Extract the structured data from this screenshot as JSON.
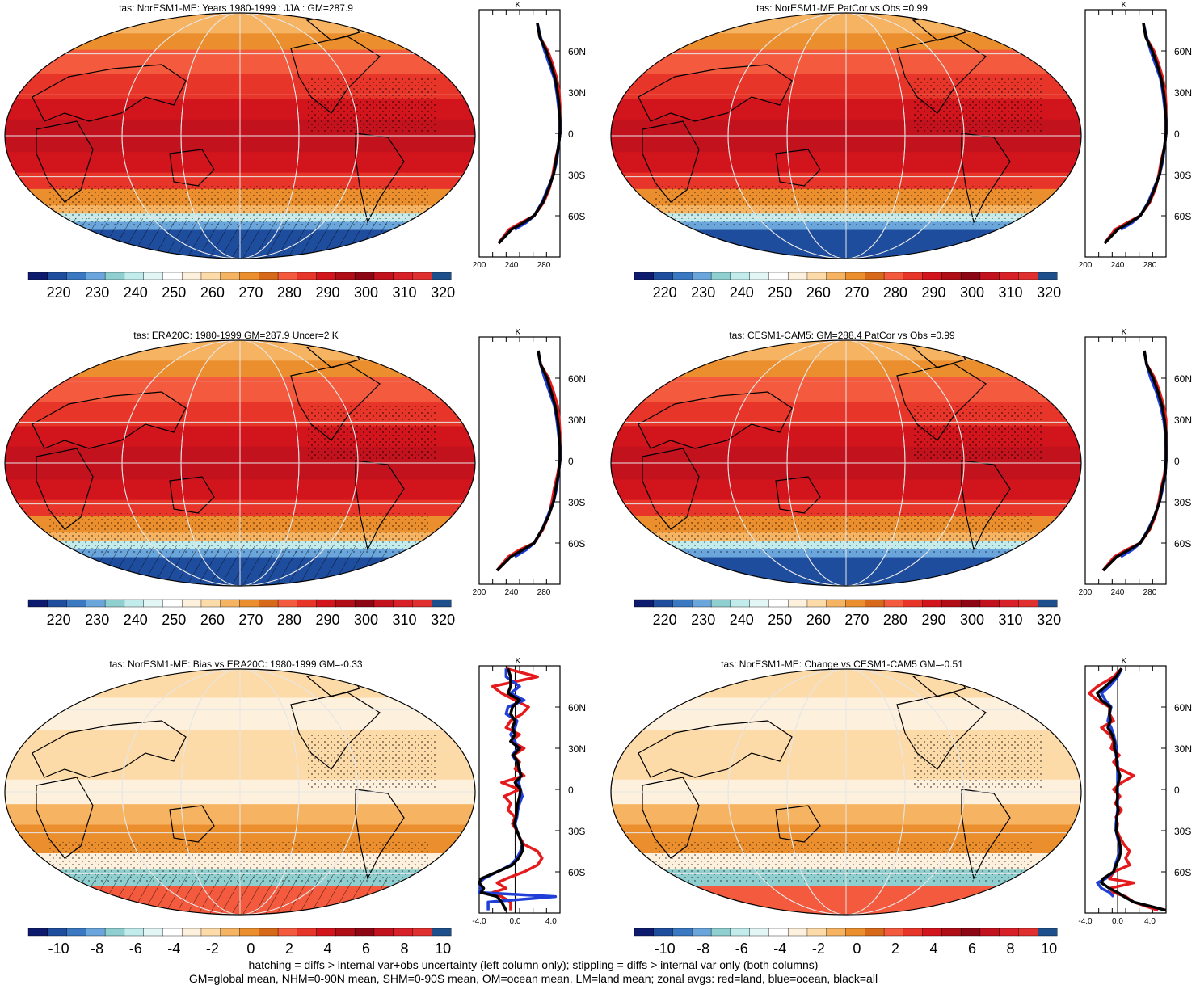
{
  "footer": {
    "line1": "hatching = diffs > internal var+obs uncertainty (left column only); stippling = diffs > internal var only (both columns)",
    "line2": "GM=global mean, NHM=0-90N mean, SHM=0-90S mean, OM=ocean mean, LM=land mean; zonal avgs: red=land, blue=ocean, black=all"
  },
  "series_colors": {
    "land": "#e41a1c",
    "ocean": "#1f3fd8",
    "all": "#000000"
  },
  "colorbars": {
    "absolute": {
      "labels": [
        "220",
        "230",
        "240",
        "250",
        "260",
        "270",
        "280",
        "290",
        "300",
        "310",
        "320"
      ],
      "colors": [
        "#0d1b6e",
        "#1f4d9e",
        "#3a78c2",
        "#6aa6dc",
        "#8fcfcf",
        "#c2ecec",
        "#e3f6f6",
        "#ffffff",
        "#fdf0dc",
        "#fddba9",
        "#f6b463",
        "#eb8e2d",
        "#d66a1a",
        "#f35a3e",
        "#e8352a",
        "#d2141c",
        "#b00d17",
        "#8c0613",
        "#c2121d",
        "#d72028",
        "#e02f2f",
        "#1d4f8c"
      ]
    },
    "difference": {
      "labels": [
        "-10",
        "-8",
        "-6",
        "-4",
        "-2",
        "0",
        "2",
        "4",
        "6",
        "8",
        "10"
      ],
      "colors": [
        "#0d1b6e",
        "#1f4d9e",
        "#3a78c2",
        "#6aa6dc",
        "#8fcfcf",
        "#c2ecec",
        "#e3f6f6",
        "#ffffff",
        "#fdf0dc",
        "#fddba9",
        "#f6b463",
        "#eb8e2d",
        "#d66a1a",
        "#f35a3e",
        "#e8352a",
        "#d2141c",
        "#b00d17",
        "#8c0613",
        "#c2121d",
        "#d72028",
        "#e02f2f",
        "#1d4f8c"
      ]
    }
  },
  "lat_labels": [
    "60N",
    "30N",
    "0",
    "30S",
    "60S"
  ],
  "panels": [
    {
      "id": "model-jja",
      "title": "tas: NorESM1-ME: Years 1980-1999 : JJA : GM=287.9",
      "kind": "absolute",
      "top_label": "K",
      "x_ticks": [
        "200",
        "240",
        "280"
      ]
    },
    {
      "id": "model-patcor",
      "title": "tas: NorESM1-ME PatCor vs Obs =0.99",
      "kind": "absolute",
      "top_label": "K",
      "x_ticks": [
        "200",
        "240",
        "280"
      ]
    },
    {
      "id": "era20c",
      "title": "tas: ERA20C: 1980-1999 GM=287.9 Uncer=2 K",
      "kind": "absolute",
      "top_label": "K",
      "x_ticks": [
        "200",
        "240",
        "280"
      ]
    },
    {
      "id": "cesm1",
      "title": "tas: CESM1-CAM5: GM=288.4 PatCor vs Obs =0.99",
      "kind": "absolute",
      "top_label": "K",
      "x_ticks": [
        "200",
        "240",
        "280"
      ]
    },
    {
      "id": "bias-era20c",
      "title": "tas: NorESM1-ME: Bias vs ERA20C: 1980-1999 GM=-0.33",
      "kind": "difference",
      "top_label": "K",
      "x_ticks": [
        "-4.0",
        "0.0",
        "4.0"
      ]
    },
    {
      "id": "change-cesm1",
      "title": "tas: NorESM1-ME: Change vs CESM1-CAM5 GM=-0.51",
      "kind": "difference",
      "top_label": "K",
      "x_ticks": [
        "-4.0",
        "0.0",
        "4.0"
      ]
    }
  ],
  "chart_data": [
    {
      "type": "line",
      "title": "tas: NorESM1-ME: Years 1980-1999 : JJA : GM=287.9",
      "xlabel": "K",
      "xlim": [
        200,
        300
      ],
      "ylim": [
        -90,
        90
      ],
      "x_ticks": [
        200,
        240,
        280
      ],
      "y_ticks": [
        "60N",
        "30N",
        "0",
        "30S",
        "60S"
      ],
      "lat": [
        80,
        70,
        60,
        50,
        40,
        30,
        20,
        10,
        0,
        -10,
        -20,
        -30,
        -40,
        -50,
        -60,
        -65,
        -70,
        -80
      ],
      "series": [
        {
          "name": "land",
          "values": [
            272,
            275,
            285,
            291,
            296,
            299,
            301,
            302,
            301,
            298,
            294,
            291,
            287,
            280,
            268,
            252,
            237,
            224
          ]
        },
        {
          "name": "ocean",
          "values": [
            272,
            276,
            281,
            287,
            293,
            296,
            298,
            300,
            300,
            298,
            296,
            292,
            285,
            278,
            268,
            258,
            244,
            null
          ]
        },
        {
          "name": "all",
          "values": [
            272,
            275,
            283,
            289,
            294,
            297,
            299,
            300,
            300,
            298,
            295,
            292,
            286,
            279,
            268,
            255,
            240,
            224
          ]
        }
      ]
    },
    {
      "type": "line",
      "title": "tas: NorESM1-ME PatCor vs Obs =0.99",
      "xlabel": "K",
      "xlim": [
        200,
        300
      ],
      "ylim": [
        -90,
        90
      ],
      "x_ticks": [
        200,
        240,
        280
      ],
      "y_ticks": [
        "60N",
        "30N",
        "0",
        "30S",
        "60S"
      ],
      "lat": [
        80,
        70,
        60,
        50,
        40,
        30,
        20,
        10,
        0,
        -10,
        -20,
        -30,
        -40,
        -50,
        -60,
        -65,
        -70,
        -80
      ],
      "series": [
        {
          "name": "land",
          "values": [
            272,
            275,
            285,
            291,
            296,
            299,
            301,
            302,
            301,
            298,
            294,
            291,
            287,
            280,
            268,
            252,
            237,
            224
          ]
        },
        {
          "name": "ocean",
          "values": [
            272,
            276,
            281,
            287,
            293,
            296,
            298,
            300,
            300,
            298,
            296,
            292,
            285,
            278,
            268,
            258,
            244,
            null
          ]
        },
        {
          "name": "all",
          "values": [
            272,
            275,
            283,
            289,
            294,
            297,
            299,
            300,
            300,
            298,
            295,
            292,
            286,
            279,
            268,
            255,
            240,
            224
          ]
        }
      ]
    },
    {
      "type": "line",
      "title": "tas: ERA20C: 1980-1999 GM=287.9 Uncer=2 K",
      "xlabel": "K",
      "xlim": [
        200,
        300
      ],
      "ylim": [
        -90,
        90
      ],
      "x_ticks": [
        200,
        240,
        280
      ],
      "y_ticks": [
        "60N",
        "30N",
        "0",
        "30S",
        "60S"
      ],
      "lat": [
        80,
        70,
        60,
        50,
        40,
        30,
        20,
        10,
        0,
        -10,
        -20,
        -30,
        -40,
        -50,
        -60,
        -65,
        -70,
        -80
      ],
      "series": [
        {
          "name": "land",
          "values": [
            273,
            276,
            286,
            292,
            297,
            299,
            301,
            301,
            300,
            297,
            293,
            290,
            286,
            279,
            268,
            250,
            236,
            222
          ]
        },
        {
          "name": "ocean",
          "values": [
            273,
            276,
            281,
            287,
            293,
            296,
            298,
            300,
            300,
            298,
            296,
            292,
            285,
            278,
            268,
            258,
            244,
            null
          ]
        },
        {
          "name": "all",
          "values": [
            273,
            276,
            284,
            289,
            294,
            297,
            299,
            300,
            300,
            298,
            295,
            292,
            286,
            278,
            268,
            254,
            239,
            222
          ]
        }
      ]
    },
    {
      "type": "line",
      "title": "tas: CESM1-CAM5: GM=288.4 PatCor vs Obs =0.99",
      "xlabel": "K",
      "xlim": [
        200,
        300
      ],
      "ylim": [
        -90,
        90
      ],
      "x_ticks": [
        200,
        240,
        280
      ],
      "y_ticks": [
        "60N",
        "30N",
        "0",
        "30S",
        "60S"
      ],
      "lat": [
        80,
        70,
        60,
        50,
        40,
        30,
        20,
        10,
        0,
        -10,
        -20,
        -30,
        -40,
        -50,
        -60,
        -65,
        -70,
        -80
      ],
      "series": [
        {
          "name": "land",
          "values": [
            273,
            276,
            286,
            292,
            297,
            300,
            301,
            302,
            301,
            298,
            294,
            291,
            287,
            280,
            268,
            251,
            236,
            222
          ]
        },
        {
          "name": "ocean",
          "values": [
            273,
            276,
            281,
            288,
            293,
            297,
            299,
            300,
            300,
            299,
            296,
            292,
            286,
            278,
            268,
            258,
            244,
            null
          ]
        },
        {
          "name": "all",
          "values": [
            273,
            276,
            284,
            290,
            295,
            298,
            300,
            301,
            300,
            299,
            295,
            292,
            286,
            279,
            268,
            254,
            239,
            222
          ]
        }
      ]
    },
    {
      "type": "line",
      "title": "tas: NorESM1-ME: Bias vs ERA20C: 1980-1999 GM=-0.33",
      "xlabel": "K",
      "xlim": [
        -4.0,
        5.0
      ],
      "ylim": [
        -90,
        90
      ],
      "x_ticks": [
        -4.0,
        0.0,
        4.0
      ],
      "y_ticks": [
        "60N",
        "30N",
        "0",
        "30S",
        "60S"
      ],
      "lat": [
        88,
        82,
        75,
        70,
        65,
        60,
        55,
        50,
        45,
        40,
        35,
        30,
        25,
        20,
        15,
        10,
        5,
        0,
        -5,
        -10,
        -15,
        -20,
        -25,
        -30,
        -35,
        -40,
        -45,
        -50,
        -55,
        -60,
        -65,
        -68,
        -72,
        -75,
        -78,
        -82,
        -88
      ],
      "series": [
        {
          "name": "land",
          "values": [
            -1.0,
            2.5,
            -2.5,
            -1.5,
            0.0,
            1.5,
            0.8,
            -0.5,
            -1.0,
            0.5,
            -0.5,
            1.0,
            -0.2,
            0.5,
            0.0,
            1.0,
            -1.5,
            0.5,
            -1.2,
            -0.5,
            -0.8,
            0.0,
            -0.3,
            0.2,
            0.5,
            1.0,
            2.5,
            3.0,
            2.5,
            1.0,
            -1.0,
            -2.0,
            -1.0,
            -2.5,
            -1.5,
            -0.5,
            -0.5
          ]
        },
        {
          "name": "ocean",
          "values": [
            -1.0,
            -1.0,
            0.5,
            -0.5,
            1.0,
            -0.8,
            -1.0,
            0.2,
            0.0,
            -0.5,
            0.0,
            0.3,
            -0.3,
            0.2,
            0.5,
            0.6,
            0.4,
            0.6,
            0.8,
            0.5,
            0.3,
            0.2,
            0.0,
            0.2,
            0.5,
            0.8,
            0.6,
            0.2,
            -0.5,
            -2.0,
            -3.5,
            -4.0,
            -3.8,
            -4.2,
            4.5,
            -3.0,
            -3.0
          ]
        },
        {
          "name": "all",
          "values": [
            -0.8,
            -0.5,
            -0.5,
            -0.8,
            0.5,
            -0.3,
            -0.5,
            0.0,
            -0.3,
            0.0,
            -0.5,
            0.5,
            -0.2,
            0.3,
            0.4,
            0.7,
            0.0,
            0.6,
            0.5,
            0.3,
            0.2,
            0.1,
            -0.1,
            0.2,
            0.5,
            0.8,
            0.8,
            0.4,
            -0.3,
            -2.0,
            -3.8,
            -4.5,
            -3.5,
            -3.8,
            -2.0,
            -1.5,
            -1.0
          ]
        }
      ]
    },
    {
      "type": "line",
      "title": "tas: NorESM1-ME: Change vs CESM1-CAM5 GM=-0.51",
      "xlabel": "K",
      "xlim": [
        -4.0,
        6.0
      ],
      "ylim": [
        -90,
        90
      ],
      "x_ticks": [
        -4.0,
        0.0,
        4.0
      ],
      "y_ticks": [
        "60N",
        "30N",
        "0",
        "30S",
        "60S"
      ],
      "lat": [
        88,
        82,
        75,
        70,
        65,
        60,
        55,
        50,
        45,
        40,
        35,
        30,
        25,
        20,
        15,
        10,
        5,
        0,
        -5,
        -10,
        -15,
        -20,
        -25,
        -30,
        -35,
        -40,
        -45,
        -50,
        -55,
        -60,
        -65,
        -68,
        -72,
        -75,
        -78,
        -82,
        -85,
        -88
      ],
      "series": [
        {
          "name": "land",
          "values": [
            0.5,
            -0.5,
            -2.5,
            -3.5,
            -2.5,
            -1.0,
            -1.0,
            -0.5,
            -2.0,
            -1.0,
            -0.5,
            -0.8,
            0.2,
            -0.5,
            0.2,
            2.0,
            0.5,
            -0.5,
            0.3,
            -0.3,
            0.5,
            -0.2,
            0.0,
            -0.1,
            0.3,
            0.8,
            1.5,
            1.0,
            1.5,
            -0.5,
            -1.0,
            2.0,
            -1.0,
            -0.5,
            1.0,
            2.0,
            3.5,
            5.0
          ]
        },
        {
          "name": "ocean",
          "values": [
            0.5,
            0.0,
            -1.0,
            -2.0,
            -1.5,
            -0.8,
            -1.0,
            -1.2,
            -0.8,
            -0.5,
            -0.3,
            -0.2,
            -0.2,
            0.0,
            0.0,
            0.0,
            0.0,
            0.0,
            0.0,
            0.0,
            0.0,
            -0.1,
            -0.2,
            -0.2,
            0.0,
            0.2,
            0.2,
            0.0,
            -0.3,
            -0.5,
            -1.5,
            -2.5,
            -2.0,
            -1.0,
            -0.5,
            null,
            null,
            null
          ]
        },
        {
          "name": "all",
          "values": [
            0.5,
            -0.2,
            -1.5,
            -2.5,
            -2.0,
            -0.9,
            -1.0,
            -0.9,
            -1.2,
            -0.7,
            -0.4,
            -0.4,
            -0.1,
            -0.1,
            0.0,
            0.3,
            0.1,
            -0.1,
            0.0,
            -0.1,
            0.1,
            -0.1,
            -0.1,
            -0.2,
            0.1,
            0.3,
            0.4,
            0.2,
            -0.2,
            -0.5,
            -1.8,
            -2.0,
            -1.0,
            0.0,
            0.8,
            2.0,
            4.0,
            6.0
          ]
        }
      ]
    }
  ]
}
